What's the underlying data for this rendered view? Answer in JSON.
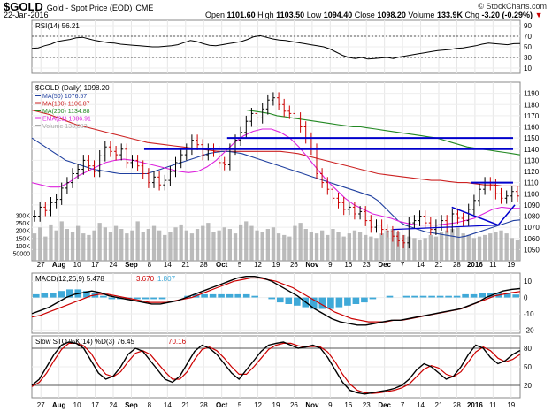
{
  "header": {
    "symbol": "$GOLD",
    "description": "Gold - Spot Price (EOD)",
    "exchange": "CME",
    "date": "22-Jan-2016",
    "open_label": "Open",
    "open": "1101.60",
    "high_label": "High",
    "high": "1103.50",
    "low_label": "Low",
    "low": "1094.40",
    "close_label": "Close",
    "close": "1098.20",
    "volume_label": "Volume",
    "volume": "133.9K",
    "chg_label": "Chg",
    "chg": "-3.20 (-0.29%)",
    "chg_arrow": "▼",
    "credit": "© StockCharts.com"
  },
  "colors": {
    "up": "#000000",
    "down": "#cc0000",
    "ma50": "#1f3f9f",
    "ma100": "#cc2222",
    "ma200": "#228822",
    "ema21": "#dd22dd",
    "volume": "#aaaaaa",
    "trend": "#0000cc",
    "hist": "#3fa9d8"
  },
  "chart_data": [
    {
      "type": "line",
      "panel": "rsi",
      "label": "RSI(14) 56.21",
      "ylim": [
        0,
        100
      ],
      "y_ticks": [
        "90",
        "70",
        "50",
        "30",
        "10"
      ],
      "reference_lines": [
        70,
        30
      ],
      "series": [
        {
          "name": "RSI(14)",
          "values": [
            47,
            48,
            52,
            55,
            60,
            62,
            64,
            67,
            68,
            65,
            62,
            60,
            58,
            57,
            55,
            54,
            53,
            52,
            51,
            50,
            50,
            51,
            52,
            54,
            58,
            62,
            60,
            56,
            53,
            52,
            54,
            56,
            58,
            60,
            64,
            69,
            71,
            68,
            65,
            63,
            62,
            60,
            58,
            56,
            54,
            52,
            50,
            46,
            40,
            34,
            30,
            28,
            30,
            27,
            28,
            29,
            30,
            28,
            31,
            33,
            35,
            37,
            39,
            41,
            43,
            44,
            45,
            47,
            48,
            50,
            52,
            55,
            57,
            56,
            55,
            54,
            56,
            56.21
          ]
        }
      ]
    },
    {
      "type": "line",
      "panel": "price",
      "title": "$GOLD (Daily) 1098.20",
      "ylim": [
        1040,
        1200
      ],
      "y_ticks": [
        "1190",
        "1180",
        "1170",
        "1160",
        "1150",
        "1140",
        "1130",
        "1120",
        "1110",
        "1100",
        "1090",
        "1080",
        "1070",
        "1060",
        "1050"
      ],
      "x_tick_labels": [
        "27",
        "Aug",
        "10",
        "17",
        "24",
        "Sep",
        "8",
        "14",
        "21",
        "28",
        "Oct",
        "5",
        "12",
        "19",
        "26",
        "Nov",
        "9",
        "16",
        "23",
        "Dec",
        "7",
        "14",
        "21",
        "28",
        "2016",
        "11",
        "19"
      ],
      "legend": [
        {
          "name": "MA(50) 1076.57",
          "color": "#1f3f9f"
        },
        {
          "name": "MA(100) 1106.87",
          "color": "#cc2222"
        },
        {
          "name": "MA(200) 1134.88",
          "color": "#228822"
        },
        {
          "name": "EMA(21) 1086.91",
          "color": "#dd22dd"
        },
        {
          "name": "Volume 133,883",
          "color": "#aaaaaa"
        }
      ],
      "close": [
        1080,
        1088,
        1085,
        1092,
        1095,
        1105,
        1110,
        1118,
        1122,
        1130,
        1125,
        1120,
        1134,
        1142,
        1138,
        1135,
        1140,
        1128,
        1130,
        1125,
        1118,
        1110,
        1115,
        1108,
        1112,
        1120,
        1128,
        1135,
        1140,
        1148,
        1144,
        1135,
        1140,
        1138,
        1128,
        1126,
        1140,
        1148,
        1155,
        1165,
        1172,
        1168,
        1176,
        1184,
        1186,
        1180,
        1174,
        1172,
        1168,
        1160,
        1150,
        1140,
        1118,
        1110,
        1104,
        1096,
        1092,
        1086,
        1088,
        1082,
        1084,
        1076,
        1070,
        1072,
        1068,
        1066,
        1062,
        1058,
        1056,
        1074,
        1076,
        1080,
        1074,
        1068,
        1072,
        1076,
        1070,
        1082,
        1078,
        1076,
        1086,
        1094,
        1104,
        1110,
        1108,
        1100,
        1096,
        1098,
        1102,
        1098
      ],
      "ma50": [
        1150,
        1146,
        1142,
        1138,
        1134,
        1130,
        1128,
        1126,
        1124,
        1122,
        1121,
        1120,
        1119,
        1118,
        1118,
        1118,
        1118,
        1118,
        1120,
        1122,
        1124,
        1126,
        1128,
        1130,
        1132,
        1134,
        1136,
        1137,
        1138,
        1138,
        1137,
        1136,
        1134,
        1132,
        1130,
        1128,
        1126,
        1124,
        1122,
        1120,
        1118,
        1116,
        1114,
        1112,
        1110,
        1108,
        1106,
        1104,
        1102,
        1100,
        1098,
        1094,
        1088,
        1082,
        1076,
        1072,
        1070,
        1068,
        1066,
        1065,
        1064,
        1063,
        1062,
        1061,
        1062,
        1064,
        1066,
        1068,
        1070,
        1072,
        1074,
        1076,
        1076.57
      ],
      "ma100": [
        1175,
        1173,
        1171,
        1168,
        1165,
        1162,
        1160,
        1158,
        1156,
        1154,
        1152,
        1150,
        1148,
        1146,
        1145,
        1144,
        1143,
        1142,
        1141,
        1140,
        1139,
        1138,
        1138,
        1138,
        1138,
        1138,
        1138,
        1138,
        1138,
        1137,
        1136,
        1134,
        1132,
        1130,
        1128,
        1126,
        1124,
        1122,
        1120,
        1118,
        1117,
        1116,
        1115,
        1114,
        1113,
        1112,
        1112,
        1111,
        1110,
        1110,
        1109,
        1108,
        1108,
        1107,
        1107,
        1106.87
      ],
      "ma200": [
        1175,
        1174,
        1173,
        1172,
        1170,
        1169,
        1168,
        1167,
        1166,
        1165,
        1164,
        1163,
        1162,
        1161,
        1160,
        1160,
        1159,
        1158,
        1157,
        1156,
        1155,
        1154,
        1153,
        1152,
        1151,
        1150,
        1148,
        1146,
        1144,
        1142,
        1141,
        1140,
        1139,
        1138,
        1137,
        1136,
        1134.88
      ],
      "ema21": [
        1110,
        1108,
        1106,
        1106,
        1110,
        1116,
        1120,
        1124,
        1128,
        1130,
        1131,
        1130,
        1128,
        1126,
        1124,
        1122,
        1120,
        1119,
        1120,
        1124,
        1130,
        1138,
        1146,
        1152,
        1156,
        1158,
        1158,
        1155,
        1150,
        1142,
        1132,
        1122,
        1112,
        1104,
        1096,
        1090,
        1086,
        1082,
        1080,
        1078,
        1075,
        1073,
        1072,
        1072,
        1072,
        1073,
        1074,
        1076,
        1078,
        1082,
        1086,
        1088,
        1087,
        1086.91
      ],
      "horizontal_lines": [
        1150,
        1140,
        1110
      ],
      "wedge": {
        "points": [
          [
            "Dec 31",
            1088
          ],
          [
            "Jan 14",
            1072
          ],
          [
            "Jan 22",
            1090
          ],
          [
            "Jan 22",
            1096
          ]
        ]
      },
      "volume_ticks": [
        "300K",
        "250K",
        "200K",
        "150K",
        "100K",
        "50000"
      ],
      "volume": [
        180,
        220,
        160,
        240,
        200,
        260,
        210,
        190,
        230,
        180,
        170,
        200,
        250,
        220,
        190,
        230,
        210,
        180,
        200,
        260,
        190,
        210,
        230,
        200,
        170,
        190,
        220,
        240,
        200,
        180,
        210,
        230,
        250,
        190,
        200,
        220,
        210,
        180,
        240,
        260,
        230,
        200,
        190,
        210,
        220,
        180,
        170,
        160,
        230,
        250,
        210,
        190,
        180,
        200,
        170,
        210,
        190,
        160,
        180,
        200,
        190,
        170,
        160,
        150,
        180,
        200,
        210,
        190,
        170,
        160,
        150,
        140,
        150,
        170,
        160,
        190,
        200,
        210,
        220,
        180,
        170,
        150,
        160,
        170,
        180,
        190,
        200,
        180,
        150,
        134
      ]
    },
    {
      "type": "line",
      "panel": "macd",
      "label": "MACD(12,26,9) 5.478, 3.670, 1.807",
      "legend": [
        {
          "name": "MACD(12,26,9) 5.478",
          "color": "#000000"
        },
        {
          "name": "3.670",
          "color": "#cc0000"
        },
        {
          "name": "1.807",
          "color": "#3fa9d8"
        }
      ],
      "ylim": [
        -22,
        15
      ],
      "y_ticks": [
        "10",
        "0",
        "-10",
        "-20"
      ],
      "macd": [
        -10,
        -8,
        -6,
        -3,
        0,
        2,
        3,
        4,
        3,
        1,
        0,
        -1,
        -2,
        -3,
        -4,
        -4,
        -3,
        -2,
        0,
        2,
        4,
        6,
        8,
        10,
        12,
        13,
        13,
        12,
        10,
        7,
        4,
        1,
        -3,
        -7,
        -10,
        -13,
        -15,
        -16,
        -17,
        -17,
        -16,
        -15,
        -14,
        -14,
        -13,
        -12,
        -11,
        -10,
        -9,
        -8,
        -7,
        -5,
        -3,
        0,
        2,
        4,
        5,
        5.478
      ],
      "signal": [
        -12,
        -11,
        -9,
        -7,
        -5,
        -3,
        -1,
        1,
        2,
        2,
        1,
        0,
        -1,
        -2,
        -3,
        -3,
        -3,
        -2,
        -1,
        0,
        2,
        4,
        6,
        8,
        10,
        11,
        12,
        12,
        11,
        10,
        8,
        6,
        3,
        0,
        -3,
        -6,
        -9,
        -11,
        -13,
        -14,
        -15,
        -15,
        -15,
        -14,
        -14,
        -13,
        -12,
        -11,
        -10,
        -9,
        -8,
        -7,
        -5,
        -3,
        -1,
        1,
        2,
        3,
        3.67
      ],
      "histogram": [
        2,
        3,
        3,
        4,
        5,
        5,
        4,
        3,
        1,
        -1,
        -1,
        -1,
        -1,
        -1,
        -1,
        -1,
        0,
        0,
        1,
        2,
        2,
        2,
        2,
        2,
        2,
        2,
        1,
        0,
        -1,
        -3,
        -4,
        -5,
        -6,
        -7,
        -7,
        -7,
        -6,
        -5,
        -4,
        -3,
        -1,
        0,
        1,
        0,
        1,
        1,
        1,
        1,
        1,
        1,
        1,
        2,
        2,
        3,
        3,
        3,
        3,
        1.807
      ]
    },
    {
      "type": "line",
      "panel": "stochastic",
      "label": "Slow STO %K(14) %D(3) 76.45, 70.16",
      "legend": [
        {
          "name": "Slow STO %K(14) %D(3) 76.45",
          "color": "#000000"
        },
        {
          "name": "70.16",
          "color": "#cc0000"
        }
      ],
      "ylim": [
        0,
        100
      ],
      "y_ticks": [
        "80",
        "50",
        "20"
      ],
      "reference_lines": [
        80,
        20
      ],
      "k": [
        20,
        30,
        50,
        70,
        85,
        90,
        88,
        80,
        60,
        40,
        30,
        35,
        50,
        70,
        80,
        75,
        60,
        45,
        30,
        25,
        35,
        55,
        75,
        85,
        80,
        70,
        55,
        40,
        30,
        45,
        60,
        75,
        85,
        88,
        90,
        85,
        80,
        82,
        85,
        80,
        65,
        45,
        25,
        12,
        8,
        6,
        8,
        10,
        12,
        15,
        20,
        30,
        45,
        55,
        50,
        40,
        30,
        35,
        50,
        70,
        85,
        80,
        65,
        55,
        60,
        70,
        76.45
      ],
      "d": [
        18,
        25,
        40,
        60,
        78,
        88,
        88,
        84,
        72,
        52,
        38,
        34,
        42,
        58,
        72,
        76,
        70,
        56,
        42,
        30,
        30,
        42,
        62,
        78,
        82,
        76,
        64,
        50,
        38,
        38,
        50,
        64,
        78,
        85,
        88,
        88,
        84,
        82,
        83,
        82,
        74,
        58,
        38,
        22,
        12,
        8,
        7,
        8,
        10,
        12,
        16,
        22,
        34,
        46,
        52,
        48,
        38,
        34,
        42,
        58,
        74,
        82,
        76,
        64,
        58,
        62,
        70.16
      ]
    },
    {
      "type": "bar",
      "panel": "x-axis",
      "categories": [
        "27",
        "Aug",
        "10",
        "17",
        "24",
        "Sep",
        "8",
        "14",
        "21",
        "28",
        "Oct",
        "5",
        "12",
        "19",
        "26",
        "Nov",
        "9",
        "16",
        "23",
        "Dec",
        "7",
        "14",
        "21",
        "28",
        "2016",
        "11",
        "19"
      ]
    }
  ]
}
